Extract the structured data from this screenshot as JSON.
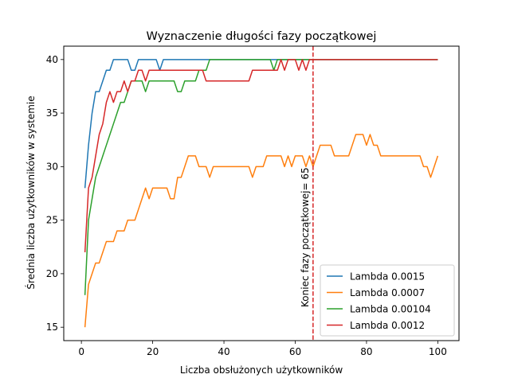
{
  "chart_data": {
    "type": "line",
    "title": "Wyznaczenie długości fazy początkowej",
    "xlabel": "Liczba obsłużonych użytkowników",
    "ylabel": "Średnia liczba użytkowników w systemie",
    "xlim": [
      -4.95,
      105.95
    ],
    "ylim": [
      13.75,
      41.25
    ],
    "xticks": [
      0,
      20,
      40,
      60,
      80,
      100
    ],
    "yticks": [
      15,
      20,
      25,
      30,
      35,
      40
    ],
    "grid": false,
    "legend_position": "lower-right",
    "vline": {
      "x": 65,
      "color": "#d62728",
      "label": "Koniec fazy początkowej= 65",
      "label_color": "#0000ff"
    },
    "series": [
      {
        "name": "Lambda 0.0015",
        "color": "#1f77b4",
        "points": [
          [
            1,
            28
          ],
          [
            2,
            32
          ],
          [
            3,
            35
          ],
          [
            4,
            37
          ],
          [
            5,
            37
          ],
          [
            6,
            38
          ],
          [
            7,
            39
          ],
          [
            8,
            39
          ],
          [
            9,
            40
          ],
          [
            10,
            40
          ],
          [
            11,
            40
          ],
          [
            12,
            40
          ],
          [
            13,
            40
          ],
          [
            14,
            39
          ],
          [
            15,
            39
          ],
          [
            16,
            40
          ],
          [
            17,
            40
          ],
          [
            18,
            40
          ],
          [
            19,
            40
          ],
          [
            20,
            40
          ],
          [
            21,
            40
          ],
          [
            22,
            39
          ],
          [
            23,
            40
          ],
          [
            24,
            40
          ],
          [
            25,
            40
          ],
          [
            26,
            40
          ],
          [
            27,
            40
          ],
          [
            28,
            40
          ],
          [
            29,
            40
          ],
          [
            30,
            40
          ],
          [
            100,
            40
          ]
        ]
      },
      {
        "name": "Lambda 0.0007",
        "color": "#ff7f0e",
        "points": [
          [
            1,
            15
          ],
          [
            2,
            19
          ],
          [
            3,
            20
          ],
          [
            4,
            21
          ],
          [
            5,
            21
          ],
          [
            6,
            22
          ],
          [
            7,
            23
          ],
          [
            8,
            23
          ],
          [
            9,
            23
          ],
          [
            10,
            24
          ],
          [
            11,
            24
          ],
          [
            12,
            24
          ],
          [
            13,
            25
          ],
          [
            14,
            25
          ],
          [
            15,
            25
          ],
          [
            16,
            26
          ],
          [
            17,
            27
          ],
          [
            18,
            28
          ],
          [
            19,
            27
          ],
          [
            20,
            28
          ],
          [
            21,
            28
          ],
          [
            22,
            28
          ],
          [
            23,
            28
          ],
          [
            24,
            28
          ],
          [
            25,
            27
          ],
          [
            26,
            27
          ],
          [
            27,
            29
          ],
          [
            28,
            29
          ],
          [
            29,
            30
          ],
          [
            30,
            31
          ],
          [
            31,
            31
          ],
          [
            32,
            31
          ],
          [
            33,
            30
          ],
          [
            34,
            30
          ],
          [
            35,
            30
          ],
          [
            36,
            29
          ],
          [
            37,
            30
          ],
          [
            38,
            30
          ],
          [
            39,
            30
          ],
          [
            40,
            30
          ],
          [
            41,
            30
          ],
          [
            42,
            30
          ],
          [
            43,
            30
          ],
          [
            44,
            30
          ],
          [
            45,
            30
          ],
          [
            46,
            30
          ],
          [
            47,
            30
          ],
          [
            48,
            29
          ],
          [
            49,
            30
          ],
          [
            50,
            30
          ],
          [
            51,
            30
          ],
          [
            52,
            31
          ],
          [
            53,
            31
          ],
          [
            54,
            31
          ],
          [
            55,
            31
          ],
          [
            56,
            31
          ],
          [
            57,
            30
          ],
          [
            58,
            31
          ],
          [
            59,
            30
          ],
          [
            60,
            31
          ],
          [
            61,
            31
          ],
          [
            62,
            31
          ],
          [
            63,
            30
          ],
          [
            64,
            31
          ],
          [
            65,
            30
          ],
          [
            66,
            31
          ],
          [
            67,
            32
          ],
          [
            68,
            32
          ],
          [
            69,
            32
          ],
          [
            70,
            32
          ],
          [
            71,
            31
          ],
          [
            72,
            31
          ],
          [
            73,
            31
          ],
          [
            74,
            31
          ],
          [
            75,
            31
          ],
          [
            76,
            32
          ],
          [
            77,
            33
          ],
          [
            78,
            33
          ],
          [
            79,
            33
          ],
          [
            80,
            32
          ],
          [
            81,
            33
          ],
          [
            82,
            32
          ],
          [
            83,
            32
          ],
          [
            84,
            31
          ],
          [
            85,
            31
          ],
          [
            86,
            31
          ],
          [
            87,
            31
          ],
          [
            88,
            31
          ],
          [
            89,
            31
          ],
          [
            90,
            31
          ],
          [
            91,
            31
          ],
          [
            92,
            31
          ],
          [
            93,
            31
          ],
          [
            94,
            31
          ],
          [
            95,
            31
          ],
          [
            96,
            30
          ],
          [
            97,
            30
          ],
          [
            98,
            29
          ],
          [
            99,
            30
          ],
          [
            100,
            31
          ]
        ]
      },
      {
        "name": "Lambda 0.00104",
        "color": "#2ca02c",
        "points": [
          [
            1,
            18
          ],
          [
            2,
            25
          ],
          [
            3,
            27
          ],
          [
            4,
            29
          ],
          [
            5,
            30
          ],
          [
            6,
            31
          ],
          [
            7,
            32
          ],
          [
            8,
            33
          ],
          [
            9,
            34
          ],
          [
            10,
            35
          ],
          [
            11,
            36
          ],
          [
            12,
            36
          ],
          [
            13,
            37
          ],
          [
            14,
            38
          ],
          [
            15,
            38
          ],
          [
            16,
            38
          ],
          [
            17,
            38
          ],
          [
            18,
            37
          ],
          [
            19,
            38
          ],
          [
            20,
            38
          ],
          [
            21,
            38
          ],
          [
            22,
            38
          ],
          [
            23,
            38
          ],
          [
            24,
            38
          ],
          [
            25,
            38
          ],
          [
            26,
            38
          ],
          [
            27,
            37
          ],
          [
            28,
            37
          ],
          [
            29,
            38
          ],
          [
            30,
            38
          ],
          [
            31,
            38
          ],
          [
            32,
            38
          ],
          [
            33,
            39
          ],
          [
            34,
            39
          ],
          [
            35,
            39
          ],
          [
            36,
            40
          ],
          [
            37,
            40
          ],
          [
            38,
            40
          ],
          [
            39,
            40
          ],
          [
            40,
            40
          ],
          [
            41,
            40
          ],
          [
            42,
            40
          ],
          [
            43,
            40
          ],
          [
            44,
            40
          ],
          [
            45,
            40
          ],
          [
            46,
            40
          ],
          [
            47,
            40
          ],
          [
            48,
            40
          ],
          [
            49,
            40
          ],
          [
            50,
            40
          ],
          [
            51,
            40
          ],
          [
            52,
            40
          ],
          [
            53,
            40
          ],
          [
            54,
            39
          ],
          [
            55,
            40
          ],
          [
            56,
            40
          ],
          [
            57,
            40
          ],
          [
            58,
            40
          ],
          [
            59,
            40
          ],
          [
            60,
            40
          ],
          [
            100,
            40
          ]
        ]
      },
      {
        "name": "Lambda 0.0012",
        "color": "#d62728",
        "points": [
          [
            1,
            22
          ],
          [
            2,
            28
          ],
          [
            3,
            29
          ],
          [
            4,
            31
          ],
          [
            5,
            33
          ],
          [
            6,
            34
          ],
          [
            7,
            36
          ],
          [
            8,
            37
          ],
          [
            9,
            36
          ],
          [
            10,
            37
          ],
          [
            11,
            37
          ],
          [
            12,
            38
          ],
          [
            13,
            37
          ],
          [
            14,
            38
          ],
          [
            15,
            38
          ],
          [
            16,
            39
          ],
          [
            17,
            39
          ],
          [
            18,
            38
          ],
          [
            19,
            39
          ],
          [
            20,
            39
          ],
          [
            21,
            39
          ],
          [
            22,
            39
          ],
          [
            23,
            39
          ],
          [
            24,
            39
          ],
          [
            25,
            39
          ],
          [
            26,
            39
          ],
          [
            27,
            39
          ],
          [
            28,
            39
          ],
          [
            29,
            39
          ],
          [
            30,
            39
          ],
          [
            31,
            39
          ],
          [
            32,
            39
          ],
          [
            33,
            39
          ],
          [
            34,
            39
          ],
          [
            35,
            38
          ],
          [
            36,
            38
          ],
          [
            37,
            38
          ],
          [
            38,
            38
          ],
          [
            39,
            38
          ],
          [
            40,
            38
          ],
          [
            41,
            38
          ],
          [
            42,
            38
          ],
          [
            43,
            38
          ],
          [
            44,
            38
          ],
          [
            45,
            38
          ],
          [
            46,
            38
          ],
          [
            47,
            38
          ],
          [
            48,
            39
          ],
          [
            49,
            39
          ],
          [
            50,
            39
          ],
          [
            51,
            39
          ],
          [
            52,
            39
          ],
          [
            53,
            39
          ],
          [
            54,
            39
          ],
          [
            55,
            39
          ],
          [
            56,
            40
          ],
          [
            57,
            39
          ],
          [
            58,
            40
          ],
          [
            59,
            40
          ],
          [
            60,
            40
          ],
          [
            61,
            39
          ],
          [
            62,
            40
          ],
          [
            63,
            39
          ],
          [
            64,
            40
          ],
          [
            65,
            40
          ],
          [
            66,
            40
          ],
          [
            100,
            40
          ]
        ]
      }
    ]
  }
}
